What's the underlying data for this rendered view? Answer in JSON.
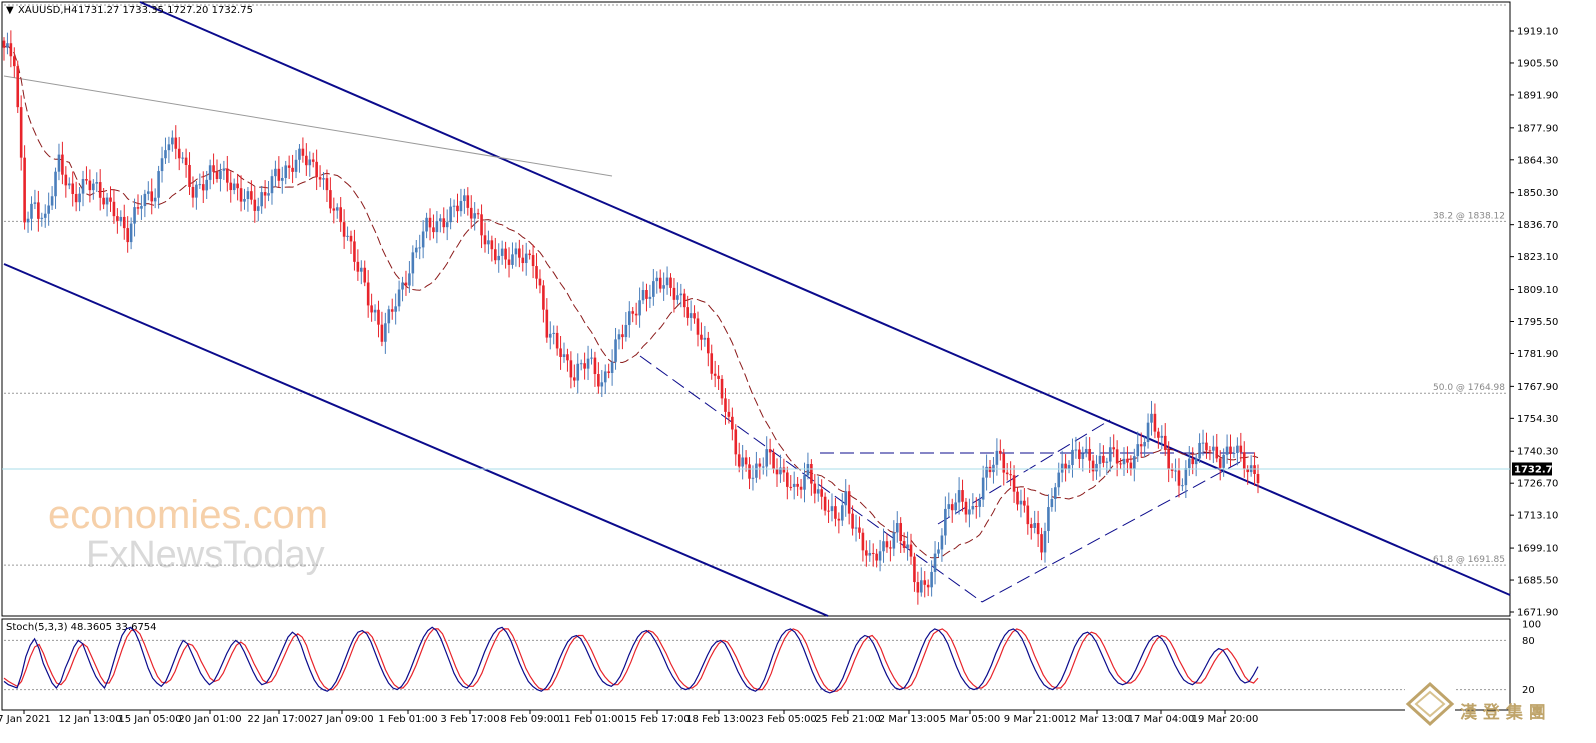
{
  "header": {
    "symbol_timeframe": "XAUUSD,H4",
    "ohlc": "1731.27 1733.35 1727.20 1732.75"
  },
  "indicator": {
    "label": "Stoch(5,3,3) 48.3605 33.6754"
  },
  "current_price": "1732.75",
  "watermark": {
    "line1": "economies.com",
    "line2": "FxNewsToday",
    "badge": "漢 登 集 團"
  },
  "colors": {
    "bull": "#4a7ebb",
    "bear": "#e8242b",
    "channel": "#0b0b8c",
    "ma": "#8b1a1a",
    "stoch_k": "#0b0b8c",
    "stoch_d": "#e8242b"
  },
  "chart_data": [
    {
      "type": "candlestick",
      "title": "",
      "y_ticks": [
        "1919.10",
        "1905.50",
        "1891.90",
        "1877.90",
        "1864.30",
        "1850.30",
        "1836.70",
        "1823.10",
        "1809.10",
        "1795.50",
        "1781.90",
        "1767.90",
        "1754.30",
        "1740.30",
        "1726.70",
        "1713.10",
        "1699.10",
        "1685.50",
        "1671.90"
      ],
      "ylim": [
        1668,
        1932
      ],
      "x_ticks": [
        "7 Jan 2021",
        "12 Jan 13:00",
        "15 Jan 05:00",
        "20 Jan 01:00",
        "22 Jan 17:00",
        "27 Jan 09:00",
        "1 Feb 01:00",
        "3 Feb 17:00",
        "8 Feb 09:00",
        "11 Feb 01:00",
        "15 Feb 17:00",
        "18 Feb 13:00",
        "23 Feb 05:00",
        "25 Feb 21:00",
        "2 Mar 13:00",
        "5 Mar 05:00",
        "9 Mar 21:00",
        "12 Mar 13:00",
        "17 Mar 04:00",
        "19 Mar 20:00"
      ],
      "fibonacci": [
        {
          "label": "38.2 @ 1838.12",
          "value": 1838.12
        },
        {
          "label": "50.0 @ 1764.98",
          "value": 1764.98
        },
        {
          "label": "61.8 @ 1691.85",
          "value": 1691.85
        }
      ],
      "resistance": 1739.5,
      "price": 1732.75,
      "anchors": [
        [
          0,
          1912
        ],
        [
          3,
          1905
        ],
        [
          6,
          1840
        ],
        [
          9,
          1847
        ],
        [
          12,
          1838
        ],
        [
          16,
          1862
        ],
        [
          20,
          1850
        ],
        [
          24,
          1855
        ],
        [
          28,
          1848
        ],
        [
          32,
          1845
        ],
        [
          36,
          1832
        ],
        [
          40,
          1846
        ],
        [
          44,
          1852
        ],
        [
          47,
          1872
        ],
        [
          51,
          1866
        ],
        [
          55,
          1852
        ],
        [
          60,
          1858
        ],
        [
          65,
          1856
        ],
        [
          70,
          1850
        ],
        [
          74,
          1842
        ],
        [
          79,
          1860
        ],
        [
          83,
          1860
        ],
        [
          87,
          1865
        ],
        [
          92,
          1860
        ],
        [
          96,
          1842
        ],
        [
          100,
          1830
        ],
        [
          104,
          1818
        ],
        [
          107,
          1800
        ],
        [
          110,
          1788
        ],
        [
          114,
          1806
        ],
        [
          118,
          1818
        ],
        [
          123,
          1835
        ],
        [
          128,
          1840
        ],
        [
          133,
          1845
        ],
        [
          138,
          1840
        ],
        [
          142,
          1825
        ],
        [
          146,
          1820
        ],
        [
          150,
          1826
        ],
        [
          154,
          1822
        ],
        [
          158,
          1790
        ],
        [
          162,
          1785
        ],
        [
          166,
          1772
        ],
        [
          170,
          1778
        ],
        [
          174,
          1770
        ],
        [
          178,
          1785
        ],
        [
          182,
          1795
        ],
        [
          186,
          1808
        ],
        [
          190,
          1812
        ],
        [
          194,
          1808
        ],
        [
          198,
          1805
        ],
        [
          202,
          1792
        ],
        [
          206,
          1775
        ],
        [
          210,
          1762
        ],
        [
          214,
          1735
        ],
        [
          218,
          1728
        ],
        [
          222,
          1742
        ],
        [
          226,
          1730
        ],
        [
          230,
          1722
        ],
        [
          234,
          1734
        ],
        [
          238,
          1718
        ],
        [
          242,
          1710
        ],
        [
          245,
          1722
        ],
        [
          248,
          1707
        ],
        [
          252,
          1692
        ],
        [
          256,
          1700
        ],
        [
          260,
          1708
        ],
        [
          264,
          1692
        ],
        [
          266,
          1680
        ],
        [
          270,
          1690
        ],
        [
          274,
          1712
        ],
        [
          278,
          1720
        ],
        [
          282,
          1716
        ],
        [
          286,
          1730
        ],
        [
          290,
          1738
        ],
        [
          294,
          1726
        ],
        [
          298,
          1710
        ],
        [
          302,
          1700
        ],
        [
          306,
          1730
        ],
        [
          310,
          1735
        ],
        [
          314,
          1740
        ],
        [
          318,
          1736
        ],
        [
          322,
          1738
        ],
        [
          326,
          1734
        ],
        [
          330,
          1742
        ],
        [
          334,
          1752
        ],
        [
          338,
          1740
        ],
        [
          342,
          1728
        ],
        [
          346,
          1735
        ],
        [
          350,
          1744
        ],
        [
          354,
          1738
        ],
        [
          358,
          1740
        ],
        [
          362,
          1733
        ],
        [
          365,
          1732
        ]
      ]
    },
    {
      "type": "line",
      "title": "Stoch(5,3,3)",
      "ylim": [
        0,
        100
      ],
      "y_ticks": [
        "100",
        "80",
        "20"
      ],
      "levels": [
        80,
        20
      ],
      "series": [
        {
          "name": "48.3605",
          "values": [
            30,
            26,
            24,
            22,
            38,
            60,
            74,
            82,
            70,
            52,
            40,
            28,
            22,
            30,
            46,
            58,
            72,
            80,
            76,
            62,
            48,
            36,
            28,
            22,
            34,
            52,
            70,
            86,
            94,
            96,
            90,
            78,
            62,
            46,
            34,
            28,
            24,
            30,
            42,
            56,
            70,
            80,
            76,
            64,
            52,
            40,
            32,
            26,
            30,
            40,
            52,
            64,
            74,
            80,
            76,
            66,
            54,
            42,
            32,
            26,
            28,
            36,
            48,
            60,
            72,
            84,
            90,
            86,
            74,
            58,
            44,
            32,
            24,
            20,
            18,
            22,
            30,
            42,
            56,
            70,
            82,
            90,
            92,
            88,
            78,
            64,
            50,
            38,
            28,
            22,
            20,
            24,
            32,
            44,
            58,
            72,
            84,
            92,
            96,
            92,
            82,
            68,
            54,
            40,
            30,
            24,
            22,
            28,
            38,
            52,
            66,
            78,
            88,
            94,
            96,
            90,
            80,
            66,
            52,
            40,
            30,
            24,
            20,
            18,
            22,
            30,
            42,
            56,
            68,
            78,
            84,
            86,
            82,
            72,
            60,
            48,
            38,
            30,
            26,
            24,
            28,
            36,
            48,
            62,
            74,
            84,
            90,
            92,
            88,
            80,
            70,
            58,
            46,
            36,
            28,
            22,
            20,
            22,
            28,
            38,
            50,
            62,
            72,
            78,
            80,
            76,
            66,
            54,
            42,
            32,
            24,
            20,
            18,
            22,
            32,
            46,
            62,
            76,
            86,
            92,
            94,
            90,
            82,
            70,
            56,
            42,
            30,
            22,
            18,
            16,
            18,
            24,
            34,
            48,
            62,
            74,
            82,
            86,
            84,
            76,
            64,
            50,
            38,
            28,
            22,
            20,
            22,
            30,
            42,
            56,
            70,
            82,
            90,
            94,
            92,
            86,
            76,
            62,
            48,
            36,
            28,
            22,
            20,
            22,
            28,
            38,
            50,
            64,
            76,
            86,
            92,
            94,
            90,
            82,
            70,
            56,
            44,
            34,
            26,
            22,
            20,
            24,
            32,
            44,
            58,
            72,
            82,
            88,
            90,
            86,
            78,
            66,
            54,
            42,
            34,
            28,
            26,
            28,
            34,
            44,
            56,
            68,
            78,
            84,
            86,
            82,
            74,
            62,
            50,
            40,
            32,
            28,
            26,
            30,
            38,
            48,
            58,
            66,
            70,
            68,
            60,
            50,
            40,
            32,
            28,
            30,
            38,
            48
          ]
        },
        {
          "name": "33.6754",
          "values": [
            34,
            30,
            27,
            24,
            30,
            44,
            60,
            72,
            75,
            64,
            50,
            38,
            28,
            26,
            32,
            44,
            58,
            70,
            76,
            72,
            60,
            48,
            36,
            28,
            28,
            38,
            54,
            70,
            84,
            92,
            93,
            88,
            76,
            62,
            48,
            36,
            29,
            28,
            32,
            42,
            56,
            68,
            76,
            74,
            66,
            54,
            44,
            34,
            30,
            32,
            40,
            52,
            64,
            74,
            78,
            74,
            64,
            52,
            42,
            32,
            28,
            30,
            38,
            50,
            62,
            74,
            84,
            88,
            84,
            74,
            58,
            44,
            32,
            24,
            20,
            20,
            26,
            36,
            48,
            62,
            76,
            86,
            90,
            90,
            84,
            72,
            58,
            44,
            34,
            26,
            22,
            22,
            28,
            38,
            50,
            64,
            78,
            88,
            94,
            94,
            88,
            76,
            62,
            48,
            36,
            28,
            24,
            24,
            30,
            40,
            54,
            68,
            80,
            90,
            94,
            94,
            86,
            74,
            60,
            46,
            36,
            28,
            22,
            20,
            20,
            26,
            36,
            48,
            62,
            74,
            82,
            86,
            86,
            78,
            68,
            56,
            44,
            36,
            30,
            26,
            26,
            32,
            42,
            54,
            68,
            80,
            88,
            92,
            90,
            84,
            74,
            64,
            52,
            42,
            32,
            26,
            22,
            22,
            26,
            34,
            46,
            58,
            68,
            76,
            80,
            78,
            70,
            60,
            48,
            36,
            28,
            22,
            20,
            20,
            28,
            40,
            56,
            70,
            82,
            90,
            94,
            92,
            86,
            76,
            62,
            48,
            36,
            26,
            20,
            18,
            18,
            22,
            30,
            42,
            56,
            68,
            78,
            84,
            86,
            80,
            70,
            56,
            44,
            34,
            26,
            22,
            22,
            26,
            36,
            50,
            64,
            78,
            88,
            92,
            94,
            90,
            82,
            70,
            56,
            42,
            32,
            26,
            22,
            22,
            26,
            34,
            46,
            58,
            72,
            82,
            90,
            94,
            92,
            86,
            76,
            62,
            50,
            38,
            30,
            24,
            22,
            22,
            28,
            38,
            52,
            66,
            78,
            86,
            90,
            88,
            82,
            72,
            60,
            48,
            38,
            32,
            28,
            28,
            32,
            40,
            50,
            62,
            74,
            82,
            86,
            84,
            78,
            68,
            56,
            46,
            36,
            30,
            28,
            28,
            34,
            44,
            54,
            62,
            68,
            70,
            64,
            56,
            46,
            36,
            30,
            28,
            34
          ]
        }
      ]
    }
  ]
}
